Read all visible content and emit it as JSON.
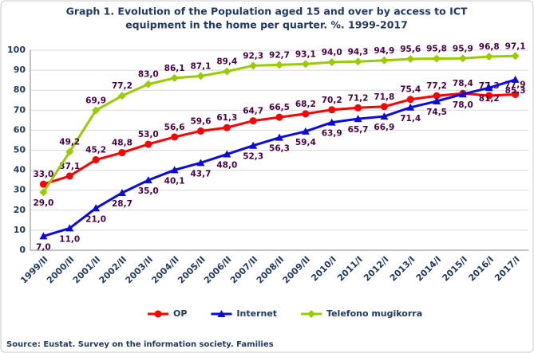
{
  "chart_data": {
    "type": "line",
    "title": [
      "Graph 1. Evolution of the Population aged 15 and over by access to ICT",
      "equipment in the home per quarter.  %. 1999-2017"
    ],
    "source": "Source: Eustat.  Survey on the information society. Families",
    "categories": [
      "1999/II",
      "2000/II",
      "2001/II",
      "2002/II",
      "2003/II",
      "2004/II",
      "2005/II",
      "2006/II",
      "2007/II",
      "2008/II",
      "2009/II",
      "2010/I",
      "2011/I",
      "2012/I",
      "2013/I",
      "2014/I",
      "2015/I",
      "2016/I",
      "2017/I"
    ],
    "ylim": [
      0,
      100
    ],
    "yticks": [
      0,
      10,
      20,
      30,
      40,
      50,
      60,
      70,
      80,
      90,
      100
    ],
    "grid": true,
    "legend": "bottom",
    "series": [
      {
        "name": "OP",
        "color": "#ff0000",
        "marker": "circle",
        "values": [
          33.0,
          37.1,
          45.2,
          48.8,
          53.0,
          56.6,
          59.6,
          61.3,
          64.7,
          66.5,
          68.2,
          70.2,
          71.2,
          71.8,
          75.4,
          77.2,
          78.4,
          77.3,
          77.9
        ],
        "value_labels": [
          "33,0",
          "37,1",
          "45,2",
          "48,8",
          "53,0",
          "56,6",
          "59,6",
          "61,3",
          "64,7",
          "66,5",
          "68,2",
          "70,2",
          "71,2",
          "71,8",
          "75,4",
          "77,2",
          "78,4",
          "77,3",
          "77,9"
        ]
      },
      {
        "name": "Internet",
        "color": "#0a0ae6",
        "marker": "triangle",
        "values": [
          7.0,
          11.0,
          21.0,
          28.7,
          35.0,
          40.1,
          43.7,
          48.0,
          52.3,
          56.3,
          59.4,
          63.9,
          65.7,
          66.9,
          71.4,
          74.5,
          78.0,
          81.2,
          85.3
        ],
        "value_labels": [
          "7,0",
          "11,0",
          "21,0",
          "28,7",
          "35,0",
          "40,1",
          "43,7",
          "48,0",
          "52,3",
          "56,3",
          "59,4",
          "63,9",
          "65,7",
          "66,9",
          "71,4",
          "74,5",
          "78,0",
          "81,2",
          "85,3"
        ]
      },
      {
        "name": "Telefono mugikorra",
        "color": "#99cc00",
        "marker": "diamond",
        "values": [
          29.0,
          49.2,
          69.9,
          77.2,
          83.0,
          86.1,
          87.1,
          89.4,
          92.3,
          92.7,
          93.1,
          94.0,
          94.3,
          94.9,
          95.6,
          95.8,
          95.9,
          96.8,
          97.1
        ],
        "value_labels": [
          "29,0",
          "49,2",
          "69,9",
          "77,2",
          "83,0",
          "86,1",
          "87,1",
          "89,4",
          "92,3",
          "92,7",
          "93,1",
          "94,0",
          "94,3",
          "94,9",
          "95,6",
          "95,8",
          "95,9",
          "96,8",
          "97,1"
        ]
      }
    ]
  }
}
